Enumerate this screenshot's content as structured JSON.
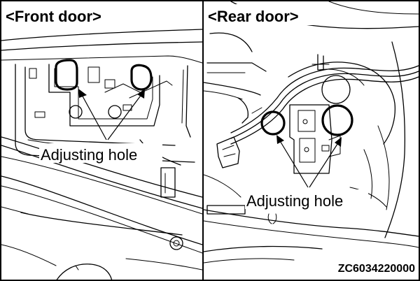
{
  "panels": {
    "front": {
      "title": "<Front door>",
      "callout": "Adjusting hole"
    },
    "rear": {
      "title": "<Rear door>",
      "callout": "Adjusting hole"
    }
  },
  "figure_code": "ZC6034220000"
}
